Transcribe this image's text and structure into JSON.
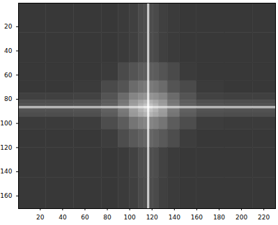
{
  "chart_data": {
    "type": "heatmap",
    "xlim": [
      0.5,
      230.5
    ],
    "ylim": [
      0.5,
      170.5
    ],
    "xticks": [
      20,
      40,
      60,
      80,
      100,
      120,
      140,
      160,
      180,
      200,
      220
    ],
    "yticks": [
      20,
      40,
      60,
      80,
      100,
      120,
      140,
      160
    ],
    "zlim": [
      0,
      1
    ],
    "x_edges": [
      0.5,
      25,
      50,
      75,
      90,
      100,
      108,
      113,
      116,
      118,
      121,
      126,
      134,
      145,
      160,
      185,
      210,
      230.5
    ],
    "y_edges": [
      0.5,
      25,
      50,
      65,
      75,
      81,
      84,
      86,
      88,
      91,
      95,
      105,
      120,
      145,
      170.5
    ],
    "cells": [
      [
        0.22,
        0.22,
        0.22,
        0.22,
        0.23,
        0.25,
        0.29,
        0.3,
        0.8,
        0.3,
        0.29,
        0.25,
        0.23,
        0.22,
        0.22,
        0.22,
        0.22
      ],
      [
        0.22,
        0.22,
        0.22,
        0.22,
        0.23,
        0.25,
        0.29,
        0.3,
        0.8,
        0.3,
        0.29,
        0.25,
        0.23,
        0.22,
        0.22,
        0.22,
        0.22
      ],
      [
        0.22,
        0.22,
        0.22,
        0.23,
        0.29,
        0.33,
        0.36,
        0.37,
        0.82,
        0.37,
        0.36,
        0.33,
        0.29,
        0.23,
        0.22,
        0.22,
        0.22
      ],
      [
        0.22,
        0.22,
        0.23,
        0.29,
        0.33,
        0.42,
        0.46,
        0.48,
        0.86,
        0.48,
        0.46,
        0.42,
        0.33,
        0.29,
        0.23,
        0.22,
        0.22
      ],
      [
        0.25,
        0.25,
        0.26,
        0.33,
        0.42,
        0.52,
        0.56,
        0.58,
        0.9,
        0.58,
        0.56,
        0.52,
        0.42,
        0.33,
        0.26,
        0.25,
        0.25
      ],
      [
        0.3,
        0.3,
        0.31,
        0.36,
        0.46,
        0.6,
        0.66,
        0.7,
        0.94,
        0.7,
        0.66,
        0.6,
        0.46,
        0.36,
        0.31,
        0.3,
        0.3
      ],
      [
        0.32,
        0.32,
        0.33,
        0.38,
        0.48,
        0.62,
        0.7,
        0.76,
        0.96,
        0.76,
        0.7,
        0.62,
        0.48,
        0.38,
        0.33,
        0.32,
        0.32
      ],
      [
        0.72,
        0.72,
        0.72,
        0.74,
        0.78,
        0.84,
        0.88,
        0.92,
        1.0,
        0.92,
        0.88,
        0.84,
        0.78,
        0.74,
        0.72,
        0.72,
        0.72
      ],
      [
        0.32,
        0.32,
        0.33,
        0.38,
        0.48,
        0.62,
        0.7,
        0.76,
        0.96,
        0.76,
        0.7,
        0.62,
        0.48,
        0.38,
        0.33,
        0.32,
        0.32
      ],
      [
        0.3,
        0.3,
        0.31,
        0.36,
        0.46,
        0.6,
        0.66,
        0.7,
        0.94,
        0.7,
        0.66,
        0.6,
        0.46,
        0.36,
        0.31,
        0.3,
        0.3
      ],
      [
        0.23,
        0.23,
        0.24,
        0.3,
        0.36,
        0.46,
        0.5,
        0.52,
        0.88,
        0.52,
        0.5,
        0.46,
        0.36,
        0.3,
        0.24,
        0.23,
        0.23
      ],
      [
        0.22,
        0.22,
        0.22,
        0.24,
        0.3,
        0.35,
        0.38,
        0.4,
        0.84,
        0.4,
        0.38,
        0.35,
        0.3,
        0.24,
        0.22,
        0.22,
        0.22
      ],
      [
        0.22,
        0.22,
        0.22,
        0.22,
        0.23,
        0.26,
        0.3,
        0.31,
        0.8,
        0.31,
        0.3,
        0.26,
        0.23,
        0.22,
        0.22,
        0.22,
        0.22
      ],
      [
        0.22,
        0.22,
        0.22,
        0.22,
        0.23,
        0.25,
        0.29,
        0.3,
        0.8,
        0.3,
        0.29,
        0.25,
        0.23,
        0.22,
        0.22,
        0.22,
        0.22
      ]
    ]
  }
}
